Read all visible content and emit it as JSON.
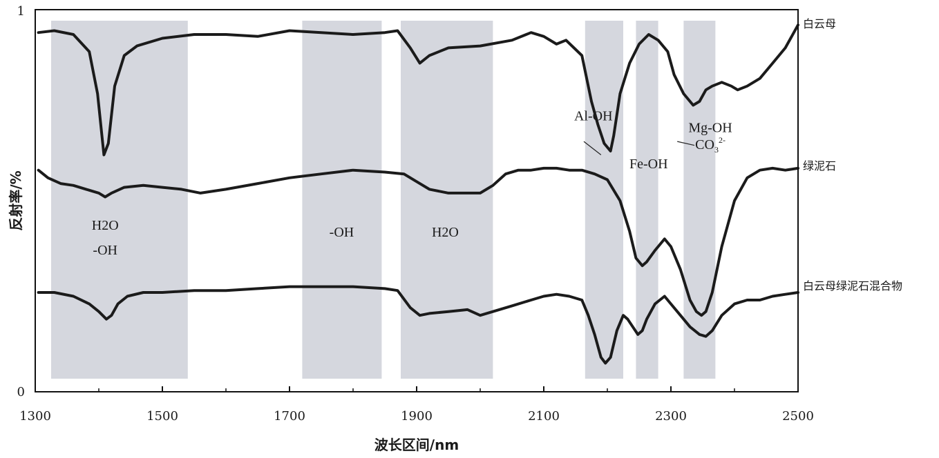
{
  "chart_data": {
    "type": "line",
    "xlabel": "波长区间/nm",
    "ylabel": "反射率/%",
    "xlim": [
      1300,
      2500
    ],
    "ylim": [
      0,
      1
    ],
    "x_ticks": [
      1300,
      1500,
      1700,
      1900,
      2100,
      2300,
      2500
    ],
    "y_tick_labels": [
      "0",
      "1"
    ],
    "grid": false,
    "absorption_bands": [
      {
        "from": 1325,
        "to": 1540,
        "label_lines": [
          "H2O",
          "-OH"
        ],
        "label_x": 1410
      },
      {
        "from": 1720,
        "to": 1845,
        "label_lines": [
          "-OH"
        ],
        "label_x": 1782
      },
      {
        "from": 1875,
        "to": 2020,
        "label_lines": [
          "H2O"
        ],
        "label_x": 1945
      },
      {
        "from": 2165,
        "to": 2225
      },
      {
        "from": 2245,
        "to": 2280
      },
      {
        "from": 2320,
        "to": 2370
      }
    ],
    "annotations": [
      {
        "text": "Al-OH",
        "x": 2178,
        "y": 0.71
      },
      {
        "text": "Fe-OH",
        "x": 2265,
        "y": 0.585
      },
      {
        "text": "Mg-OH",
        "x": 2362,
        "y": 0.68
      },
      {
        "text": "CO",
        "sub": "3",
        "sup": "2-",
        "x": 2362,
        "y": 0.635
      }
    ],
    "series": [
      {
        "name": "白云母",
        "x": [
          1305,
          1330,
          1360,
          1385,
          1398,
          1408,
          1415,
          1425,
          1440,
          1460,
          1500,
          1550,
          1600,
          1650,
          1700,
          1750,
          1800,
          1850,
          1870,
          1890,
          1905,
          1920,
          1950,
          2000,
          2050,
          2080,
          2100,
          2120,
          2135,
          2160,
          2175,
          2185,
          2195,
          2205,
          2210,
          2220,
          2235,
          2250,
          2265,
          2280,
          2295,
          2305,
          2320,
          2335,
          2345,
          2355,
          2365,
          2380,
          2395,
          2405,
          2420,
          2440,
          2460,
          2480,
          2500
        ],
        "y": [
          0.94,
          0.945,
          0.935,
          0.89,
          0.78,
          0.62,
          0.65,
          0.8,
          0.88,
          0.905,
          0.925,
          0.935,
          0.935,
          0.93,
          0.945,
          0.94,
          0.935,
          0.94,
          0.945,
          0.9,
          0.86,
          0.88,
          0.9,
          0.905,
          0.92,
          0.94,
          0.93,
          0.91,
          0.92,
          0.88,
          0.76,
          0.7,
          0.65,
          0.63,
          0.67,
          0.78,
          0.86,
          0.91,
          0.935,
          0.92,
          0.89,
          0.83,
          0.78,
          0.75,
          0.76,
          0.79,
          0.8,
          0.81,
          0.8,
          0.79,
          0.8,
          0.82,
          0.86,
          0.9,
          0.96
        ]
      },
      {
        "name": "绿泥石",
        "x": [
          1305,
          1320,
          1340,
          1360,
          1380,
          1400,
          1410,
          1420,
          1440,
          1470,
          1500,
          1530,
          1560,
          1600,
          1650,
          1700,
          1750,
          1800,
          1850,
          1880,
          1900,
          1920,
          1950,
          1980,
          2000,
          2020,
          2040,
          2060,
          2080,
          2100,
          2120,
          2140,
          2160,
          2180,
          2200,
          2220,
          2235,
          2245,
          2255,
          2262,
          2275,
          2290,
          2300,
          2315,
          2330,
          2340,
          2348,
          2355,
          2365,
          2380,
          2400,
          2420,
          2440,
          2460,
          2480,
          2500
        ],
        "y": [
          0.58,
          0.56,
          0.545,
          0.54,
          0.53,
          0.52,
          0.51,
          0.52,
          0.535,
          0.54,
          0.535,
          0.53,
          0.52,
          0.53,
          0.545,
          0.56,
          0.57,
          0.58,
          0.575,
          0.57,
          0.55,
          0.53,
          0.52,
          0.52,
          0.52,
          0.54,
          0.57,
          0.58,
          0.58,
          0.585,
          0.585,
          0.58,
          0.58,
          0.57,
          0.555,
          0.5,
          0.42,
          0.35,
          0.33,
          0.34,
          0.37,
          0.4,
          0.38,
          0.32,
          0.24,
          0.21,
          0.2,
          0.21,
          0.26,
          0.38,
          0.5,
          0.56,
          0.58,
          0.585,
          0.58,
          0.585
        ]
      },
      {
        "name": "白云母绿泥石混合物",
        "x": [
          1305,
          1330,
          1360,
          1385,
          1400,
          1412,
          1420,
          1430,
          1445,
          1470,
          1500,
          1550,
          1600,
          1650,
          1700,
          1750,
          1800,
          1850,
          1870,
          1890,
          1905,
          1920,
          1950,
          1980,
          2000,
          2020,
          2050,
          2080,
          2100,
          2120,
          2140,
          2160,
          2170,
          2180,
          2190,
          2197,
          2205,
          2215,
          2225,
          2232,
          2240,
          2248,
          2255,
          2262,
          2275,
          2290,
          2300,
          2315,
          2330,
          2345,
          2355,
          2365,
          2380,
          2400,
          2420,
          2440,
          2460,
          2480,
          2500
        ],
        "y": [
          0.26,
          0.26,
          0.25,
          0.23,
          0.21,
          0.19,
          0.2,
          0.23,
          0.25,
          0.26,
          0.26,
          0.265,
          0.265,
          0.27,
          0.275,
          0.275,
          0.275,
          0.27,
          0.265,
          0.22,
          0.2,
          0.205,
          0.21,
          0.215,
          0.2,
          0.21,
          0.225,
          0.24,
          0.25,
          0.255,
          0.25,
          0.24,
          0.2,
          0.15,
          0.09,
          0.075,
          0.09,
          0.16,
          0.2,
          0.19,
          0.17,
          0.15,
          0.16,
          0.19,
          0.23,
          0.25,
          0.23,
          0.2,
          0.17,
          0.15,
          0.145,
          0.16,
          0.2,
          0.23,
          0.24,
          0.24,
          0.25,
          0.255,
          0.26
        ]
      }
    ]
  }
}
